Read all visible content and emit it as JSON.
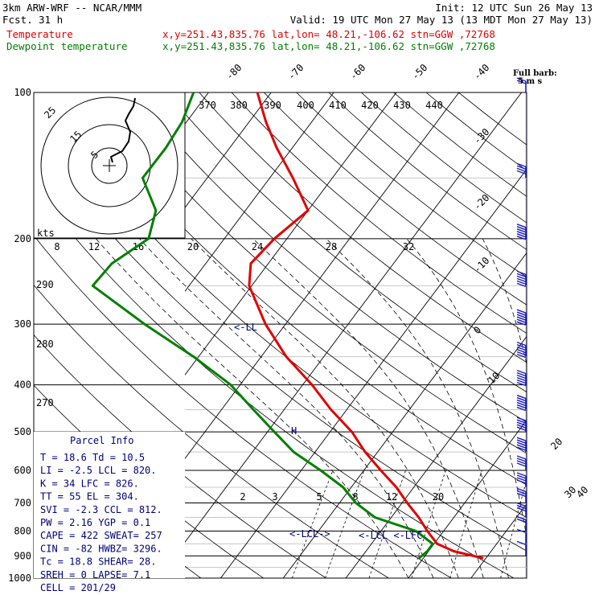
{
  "header": {
    "model": "3km ARW-WRF -- NCAR/MMM",
    "init": "Init: 12 UTC Sun 26 May 13",
    "fcst_label": "Fcst.",
    "fcst_hours": "31 h",
    "valid": "Valid: 19 UTC Mon 27 May 13 (13 MDT Mon 27 May 13)",
    "temp_label": "Temperature",
    "temp_info": "x,y=251.43,835.76   lat,lon= 48.21,-106.62  stn=GGW ,72768",
    "dew_label": "Dewpoint temperature",
    "dew_info": "x,y=251.43,835.76   lat,lon= 48.21,-106.62  stn=GGW ,72768"
  },
  "colors": {
    "temperature": "#e00000",
    "dewpoint": "#008000",
    "parcel_text": "#00007a",
    "wind_barbs": "#1a1acc",
    "grid": "#000000",
    "header_red": "#e00000",
    "header_green": "#008000"
  },
  "barb_label": [
    "Full barb:",
    "5 m s"
  ],
  "hodograph": {
    "units": "kts",
    "ring_labels": [
      "5",
      "15",
      "25"
    ],
    "speed_ticks": [
      "8",
      "12",
      "16",
      "20",
      "24",
      "28",
      "32"
    ]
  },
  "theta_labels": [
    "370",
    "380",
    "390",
    "400",
    "410",
    "420",
    "430",
    "440"
  ],
  "theta_left_labels": [
    "290",
    "280",
    "270"
  ],
  "mixing_ratio_labels": [
    "2",
    "3",
    "5",
    "8",
    "12",
    "20"
  ],
  "markers": {
    "lcl_upper": "<-LL",
    "lcl_lower": "<-LCL->",
    "lcl_right": "<-LCL <-LFC",
    "el_mark": "H"
  },
  "parcel_info": {
    "title": "Parcel Info",
    "rows": [
      "T  =   18.6 Td =  10.5",
      "LI =   -2.5 LCL =  820.",
      "K  =     34 LFC =  826.",
      "TT =     55 EL  =  304.",
      "SVI =  -2.3 CCL =  812.",
      "PW =   2.16 YGP =   0.1",
      "CAPE =  422 SWEAT=  257",
      "CIN =   -82 HWBZ= 3296.",
      "Tc =   18.8 SHEAR=  28.",
      "SREH =    0 LAPSE=  7.1",
      "CELL = 201/29"
    ]
  },
  "chart_data": {
    "type": "line",
    "title": "",
    "xlabel": "",
    "ylabel": "",
    "y_scale": "log-pressure",
    "pressure_range_hPa": [
      1000,
      100
    ],
    "pressure_levels": [
      100,
      200,
      300,
      400,
      500,
      600,
      700,
      800,
      900,
      1000
    ],
    "pressure_tick_labels": [
      "100",
      "200",
      "300",
      "400",
      "500",
      "600",
      "700",
      "800",
      "900",
      "1000"
    ],
    "isotherm_labels": [
      "-80",
      "-70",
      "-60",
      "-50",
      "-40",
      "-30",
      "-20",
      "-10",
      "0",
      "10",
      "20",
      "30",
      "40"
    ],
    "grid": true,
    "legend": "header",
    "series": [
      {
        "name": "Temperature",
        "unit": "degC",
        "pressure": [
          910,
          880,
          850,
          800,
          750,
          700,
          650,
          600,
          550,
          500,
          450,
          400,
          350,
          300,
          250,
          225,
          200,
          175,
          150,
          130,
          115,
          100
        ],
        "values": [
          19.6,
          14.0,
          10.5,
          7.4,
          4.4,
          0.8,
          -2.8,
          -7.3,
          -12.0,
          -16.5,
          -22.5,
          -28.5,
          -36.0,
          -43.2,
          -50.4,
          -52.8,
          -52.0,
          -50.0,
          -56.3,
          -62.5,
          -67.3,
          -72.2
        ]
      },
      {
        "name": "Dewpoint temperature",
        "unit": "degC",
        "pressure": [
          910,
          880,
          850,
          800,
          750,
          700,
          650,
          600,
          550,
          500,
          450,
          400,
          350,
          300,
          250,
          225,
          200,
          175,
          150,
          130,
          115,
          100
        ],
        "values": [
          9.3,
          9.8,
          9.8,
          5.6,
          -2.6,
          -7.4,
          -11.3,
          -16.9,
          -23.4,
          -28.9,
          -34.9,
          -41.5,
          -50.8,
          -62.5,
          -75.4,
          -75.0,
          -72.1,
          -74.3,
          -80.3,
          -80.2,
          -80.7,
          -82.4
        ]
      }
    ],
    "wind": {
      "unit": "m s-1",
      "pressure": [
        900,
        850,
        800,
        750,
        700,
        650,
        600,
        550,
        500,
        450,
        400,
        350,
        300,
        250,
        200,
        150,
        100
      ],
      "speed": [
        5,
        5,
        10,
        15,
        15,
        20,
        20,
        25,
        25,
        30,
        35,
        35,
        40,
        35,
        30,
        20,
        10
      ]
    }
  }
}
